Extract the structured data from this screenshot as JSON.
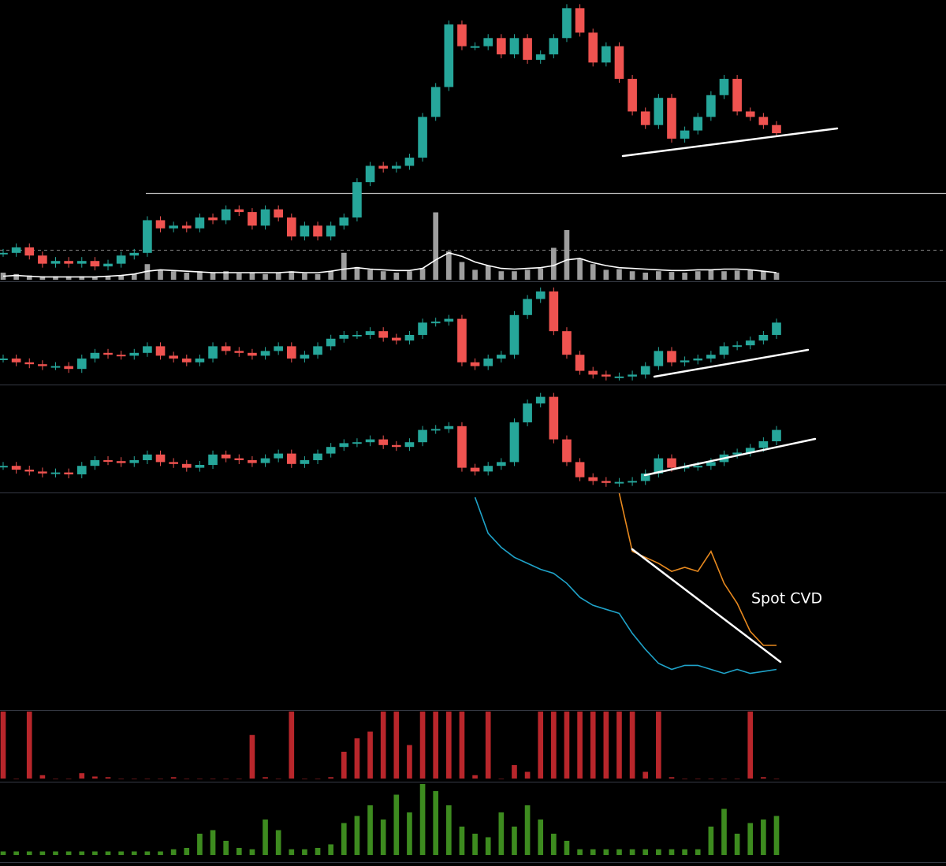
{
  "chart_data": [
    {
      "type": "candlestick",
      "ylim": [
        0,
        100
      ],
      "up_color": "#26a69a",
      "down_color": "#ef5350",
      "values": [
        7,
        9,
        6,
        3,
        4,
        3,
        4,
        2,
        3,
        6,
        7,
        19,
        16,
        17,
        16,
        20,
        19,
        23,
        22,
        17,
        23,
        20,
        13,
        17,
        13,
        17,
        20,
        33,
        39,
        38,
        39,
        42,
        57,
        68,
        91,
        83,
        83,
        86,
        80,
        86,
        78,
        80,
        86,
        97,
        88,
        77,
        83,
        71,
        59,
        54,
        64,
        49,
        52,
        57,
        65,
        71,
        59,
        57,
        54,
        51
      ]
    },
    {
      "type": "bar",
      "ylim": [
        0,
        100
      ],
      "color": "#9e9e9e",
      "values": [
        10,
        8,
        6,
        5,
        5,
        5,
        5,
        4,
        5,
        6,
        8,
        22,
        14,
        12,
        10,
        12,
        10,
        12,
        9,
        10,
        8,
        10,
        12,
        9,
        8,
        12,
        38,
        18,
        14,
        12,
        10,
        12,
        16,
        95,
        40,
        25,
        14,
        20,
        12,
        12,
        14,
        16,
        45,
        70,
        30,
        22,
        14,
        15,
        12,
        10,
        12,
        11,
        10,
        12,
        14,
        12,
        13,
        14,
        12,
        10
      ]
    },
    {
      "type": "line",
      "ylim": [
        0,
        100
      ],
      "color": "#ffffff",
      "values": [
        5,
        6,
        5,
        4,
        4,
        4,
        4,
        4,
        5,
        6,
        8,
        12,
        14,
        13,
        12,
        11,
        10,
        10,
        10,
        10,
        10,
        10,
        11,
        10,
        10,
        12,
        15,
        17,
        15,
        14,
        13,
        13,
        16,
        28,
        38,
        33,
        25,
        20,
        16,
        15,
        16,
        17,
        20,
        28,
        30,
        24,
        20,
        17,
        16,
        15,
        14,
        13,
        13,
        14,
        14,
        15,
        15,
        14,
        12,
        10
      ]
    },
    {
      "type": "candlestick",
      "ylim": [
        0,
        100
      ],
      "up_color": "#26a69a",
      "down_color": "#ef5350",
      "values": [
        25,
        21,
        19,
        17,
        17,
        14,
        25,
        31,
        29,
        28,
        31,
        38,
        28,
        25,
        21,
        25,
        38,
        33,
        31,
        28,
        33,
        38,
        25,
        29,
        38,
        46,
        50,
        50,
        54,
        47,
        44,
        50,
        63,
        64,
        67,
        21,
        17,
        25,
        29,
        71,
        88,
        96,
        54,
        29,
        12,
        8,
        6,
        6,
        8,
        17,
        33,
        21,
        23,
        25,
        29,
        38,
        39,
        44,
        50,
        63
      ]
    },
    {
      "type": "candlestick",
      "ylim": [
        0,
        100
      ],
      "up_color": "#26a69a",
      "down_color": "#ef5350",
      "values": [
        24,
        20,
        18,
        16,
        17,
        15,
        24,
        30,
        29,
        27,
        30,
        36,
        28,
        26,
        22,
        25,
        36,
        32,
        30,
        27,
        32,
        37,
        26,
        30,
        37,
        44,
        48,
        49,
        52,
        46,
        44,
        49,
        62,
        63,
        66,
        22,
        18,
        24,
        28,
        70,
        90,
        97,
        52,
        28,
        12,
        8,
        6,
        7,
        8,
        16,
        32,
        22,
        23,
        24,
        28,
        36,
        38,
        43,
        50,
        62
      ]
    },
    {
      "type": "line",
      "ylim": [
        0,
        100
      ],
      "annotation": "Spot CVD",
      "series": [
        {
          "color": "#1fa3c9",
          "values": [
            null,
            null,
            null,
            null,
            null,
            null,
            null,
            null,
            null,
            null,
            null,
            null,
            null,
            null,
            null,
            null,
            null,
            null,
            null,
            null,
            null,
            null,
            null,
            null,
            null,
            null,
            null,
            null,
            null,
            null,
            null,
            null,
            null,
            null,
            null,
            null,
            98,
            80,
            73,
            68,
            65,
            62,
            60,
            55,
            48,
            44,
            42,
            40,
            30,
            22,
            15,
            12,
            14,
            14,
            12,
            10,
            12,
            10,
            11,
            12
          ]
        },
        {
          "color": "#e8891e",
          "values": [
            null,
            null,
            null,
            null,
            null,
            null,
            null,
            null,
            null,
            null,
            null,
            null,
            null,
            null,
            null,
            null,
            null,
            null,
            null,
            null,
            null,
            null,
            null,
            null,
            null,
            null,
            null,
            null,
            null,
            null,
            null,
            null,
            null,
            null,
            null,
            null,
            null,
            null,
            null,
            null,
            null,
            null,
            null,
            null,
            null,
            null,
            null,
            100,
            71,
            68,
            65,
            61,
            63,
            61,
            71,
            55,
            45,
            31,
            24,
            24
          ]
        }
      ]
    },
    {
      "type": "bar",
      "ylim": [
        0,
        100
      ],
      "color": "#b8262b",
      "values": [
        100,
        0,
        100,
        5,
        0,
        0,
        8,
        3,
        2,
        0,
        0,
        0,
        0,
        2,
        0,
        0,
        0,
        0,
        0,
        65,
        2,
        0,
        100,
        0,
        0,
        2,
        40,
        60,
        70,
        100,
        100,
        50,
        100,
        100,
        100,
        100,
        5,
        100,
        0,
        20,
        10,
        100,
        100,
        100,
        100,
        100,
        100,
        100,
        100,
        10,
        100,
        2,
        0,
        0,
        0,
        0,
        0,
        100,
        2,
        0
      ]
    },
    {
      "type": "bar",
      "ylim": [
        0,
        100
      ],
      "color": "#3d8b1f",
      "values": [
        5,
        5,
        5,
        5,
        5,
        5,
        5,
        5,
        5,
        5,
        5,
        5,
        5,
        8,
        10,
        30,
        35,
        20,
        10,
        8,
        50,
        35,
        8,
        8,
        10,
        15,
        45,
        55,
        70,
        50,
        85,
        60,
        100,
        90,
        70,
        40,
        30,
        25,
        60,
        40,
        70,
        50,
        30,
        20,
        8,
        8,
        8,
        8,
        8,
        8,
        8,
        8,
        8,
        8,
        40,
        65,
        30,
        45,
        50,
        55
      ]
    }
  ]
}
